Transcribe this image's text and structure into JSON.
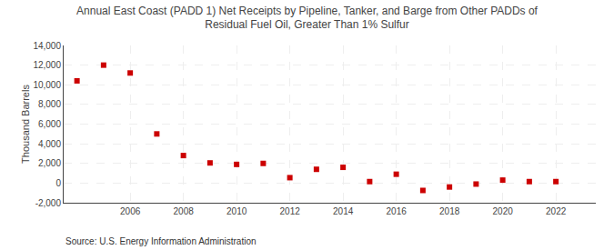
{
  "chart_data": {
    "type": "scatter",
    "title": "Annual East Coast (PADD 1) Net Receipts by Pipeline, Tanker, and Barge from Other PADDs of\nResidual Fuel Oil, Greater Than 1% Sulfur",
    "ylabel": "Thousand Barrels",
    "annotations": [
      "Source: U.S. Energy Information Administration"
    ],
    "x": [
      2004,
      2005,
      2006,
      2007,
      2008,
      2009,
      2010,
      2011,
      2012,
      2013,
      2014,
      2015,
      2016,
      2017,
      2018,
      2019,
      2020,
      2021,
      2022
    ],
    "values": [
      10400,
      12000,
      11200,
      5000,
      2800,
      2050,
      1900,
      2000,
      550,
      1400,
      1600,
      150,
      900,
      -750,
      -400,
      -100,
      300,
      150,
      150
    ],
    "color": "#cc0000",
    "marker": "square",
    "xlim": [
      2003.5,
      2023.5
    ],
    "xticks": [
      2006,
      2008,
      2010,
      2012,
      2014,
      2016,
      2018,
      2020,
      2022
    ],
    "ylim": [
      -2000,
      14000
    ],
    "yticks": [
      {
        "value": -2000,
        "label": "-2,000"
      },
      0,
      {
        "value": 2000,
        "label": "2,000"
      },
      {
        "value": 4000,
        "label": "4,000"
      },
      {
        "value": 6000,
        "label": "6,000"
      },
      {
        "value": 8000,
        "label": "8,000"
      },
      {
        "value": 10000,
        "label": "10,000"
      },
      {
        "value": 12000,
        "label": "12,000"
      },
      {
        "value": 14000,
        "label": "14,000"
      }
    ],
    "grid": true
  }
}
